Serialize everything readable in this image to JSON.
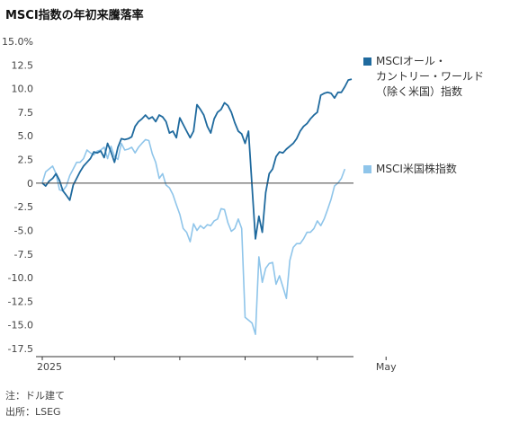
{
  "title": "MSCI指数の年初来騰落率",
  "chart_data": {
    "type": "line",
    "ylim": [
      -17.5,
      15.0
    ],
    "y_ticks": [
      "15.0%",
      "12.5",
      "10.0",
      "7.5",
      "5.0",
      "2.5",
      "0",
      "-2.5",
      "-5.0",
      "-7.5",
      "-10.0",
      "-12.5",
      "-15.0",
      "-17.5"
    ],
    "y_tick_values": [
      15.0,
      12.5,
      10.0,
      7.5,
      5.0,
      2.5,
      0,
      -2.5,
      -5.0,
      -7.5,
      -10.0,
      -12.5,
      -15.0,
      -17.5
    ],
    "x_tick_labels": [
      {
        "label": "2025",
        "t": 0
      },
      {
        "label": "",
        "t": 21
      },
      {
        "label": "",
        "t": 40
      },
      {
        "label": "",
        "t": 59
      },
      {
        "label": "",
        "t": 80
      },
      {
        "label": "May",
        "t": 100
      }
    ],
    "grid": false,
    "zero_line": true,
    "legend_placement": "right",
    "series": [
      {
        "name": "MSCIオール・\nカントリー・ワールド\n（除く米国）指数",
        "color": "#1f6a9e",
        "values": [
          0,
          -0.3,
          0.2,
          0.5,
          1.0,
          0.3,
          -0.8,
          -1.3,
          -1.8,
          -0.2,
          0.5,
          1.2,
          1.8,
          2.2,
          2.6,
          3.3,
          3.2,
          3.4,
          2.7,
          4.2,
          3.3,
          2.2,
          3.8,
          4.7,
          4.6,
          4.7,
          4.9,
          6.0,
          6.5,
          6.8,
          7.2,
          6.8,
          7.0,
          6.5,
          7.2,
          7.0,
          6.5,
          5.3,
          5.5,
          4.8,
          6.9,
          6.2,
          5.5,
          4.8,
          5.5,
          8.3,
          7.8,
          7.2,
          6.0,
          5.3,
          6.8,
          7.5,
          7.8,
          8.5,
          8.2,
          7.5,
          6.4,
          5.5,
          5.2,
          4.2,
          5.5,
          -0.3,
          -5.9,
          -3.5,
          -5.2,
          -1.0,
          1.0,
          1.5,
          2.8,
          3.3,
          3.2,
          3.6,
          3.9,
          4.2,
          4.7,
          5.5,
          6.0,
          6.3,
          6.8,
          7.2,
          7.5,
          9.3,
          9.5,
          9.6,
          9.5,
          9.0,
          9.6,
          9.6,
          10.2,
          10.9,
          11.0
        ]
      },
      {
        "name": "MSCI米国株指数",
        "color": "#8fc5ea",
        "values": [
          0,
          1.2,
          1.5,
          1.8,
          1.0,
          -0.7,
          -0.8,
          -0.3,
          0.8,
          1.5,
          2.2,
          2.2,
          2.6,
          3.5,
          3.2,
          3.0,
          3.4,
          3.5,
          3.8,
          2.6,
          3.9,
          2.8,
          2.5,
          4.2,
          3.5,
          3.6,
          3.8,
          3.2,
          3.8,
          4.2,
          4.6,
          4.5,
          3.1,
          2.2,
          0.5,
          1.0,
          -0.2,
          -0.5,
          -1.2,
          -2.3,
          -3.3,
          -4.8,
          -5.2,
          -6.2,
          -4.3,
          -5.0,
          -4.5,
          -4.8,
          -4.4,
          -4.5,
          -4.0,
          -3.8,
          -2.7,
          -2.8,
          -4.2,
          -5.1,
          -4.8,
          -3.8,
          -4.8,
          -14.2,
          -14.5,
          -14.8,
          -16.0,
          -7.8,
          -10.5,
          -9.0,
          -8.5,
          -8.4,
          -10.7,
          -9.8,
          -11.0,
          -12.2,
          -8.2,
          -6.8,
          -6.4,
          -6.4,
          -5.9,
          -5.2,
          -5.2,
          -4.8,
          -4.0,
          -4.5,
          -3.8,
          -2.8,
          -1.7,
          -0.3,
          0.0,
          0.5,
          1.5
        ]
      }
    ]
  },
  "notes": {
    "note1": "注：ドル建て",
    "note2": "出所：LSEG"
  }
}
